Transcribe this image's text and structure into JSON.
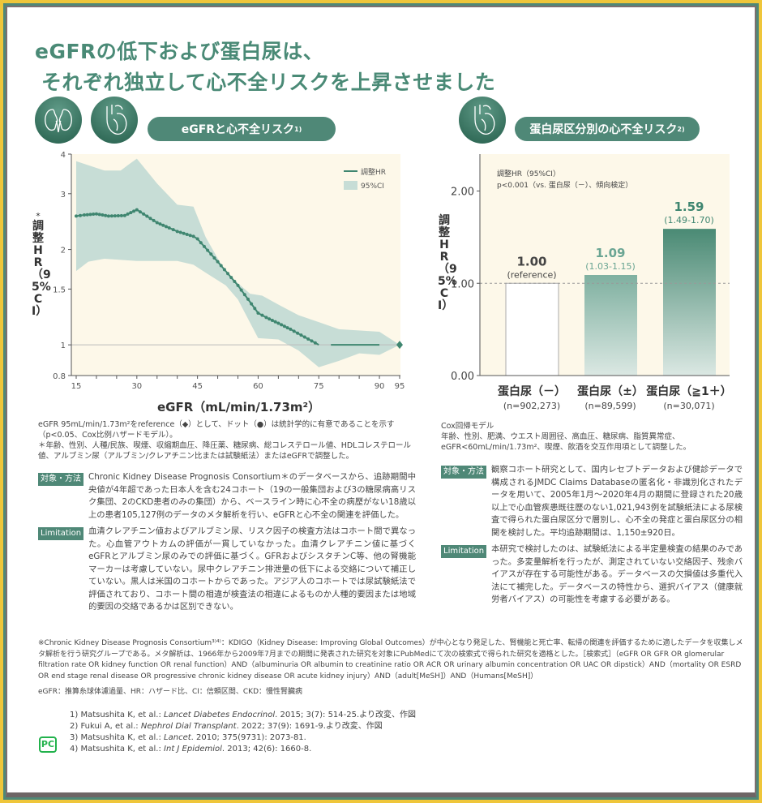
{
  "title": {
    "line1": "eGFRの低下および蛋白尿は、",
    "line2": "それぞれ独立して心不全リスクを上昇させました"
  },
  "left": {
    "section_label": "eGFRと心不全リスク",
    "section_sup": "1)",
    "icons": [
      "kidney-icon",
      "heart-icon"
    ],
    "chart_data": {
      "type": "line",
      "xlabel": "eGFR（mL/min/1.73m²）",
      "ylabel": "調整HR（95%CI）",
      "ylabel_mark": "*",
      "yscale": "log",
      "xlim": [
        15,
        95
      ],
      "ylim": [
        0.8,
        4
      ],
      "xticks": [
        15,
        30,
        45,
        60,
        75,
        90,
        95
      ],
      "yticks": [
        0.8,
        1,
        1.5,
        2,
        3,
        4
      ],
      "legend": {
        "position": "top-right",
        "hr": "調整HR",
        "ci": "95%CI"
      },
      "reference": {
        "x": 95,
        "y": 1
      },
      "hr": {
        "x": [
          15,
          17,
          20,
          23,
          27,
          30,
          35,
          38,
          40,
          44,
          45,
          50,
          55,
          60,
          62,
          65,
          68,
          75
        ],
        "y": [
          2.55,
          2.57,
          2.59,
          2.55,
          2.56,
          2.67,
          2.43,
          2.34,
          2.28,
          2.2,
          2.16,
          1.83,
          1.54,
          1.26,
          1.22,
          1.17,
          1.12,
          1.0
        ]
      },
      "hr_flat": {
        "x": [
          78,
          90
        ],
        "y": [
          1.0,
          1.0
        ]
      },
      "ci_upper": {
        "x": [
          15,
          22,
          26,
          28,
          30,
          35,
          40,
          44,
          47,
          52,
          58,
          61,
          65,
          70,
          75,
          80,
          90,
          95
        ],
        "y": [
          3.8,
          3.55,
          3.55,
          3.71,
          3.87,
          3.23,
          2.77,
          2.73,
          2.19,
          1.69,
          1.45,
          1.43,
          1.34,
          1.24,
          1.18,
          1.12,
          1.1,
          1.0
        ]
      },
      "ci_lower": {
        "x": [
          15,
          18,
          22,
          30,
          40,
          44,
          47,
          52,
          55,
          60,
          65,
          70,
          75,
          80,
          85,
          90,
          95
        ],
        "y": [
          1.71,
          1.83,
          1.87,
          1.84,
          1.84,
          1.79,
          1.69,
          1.54,
          1.39,
          1.05,
          1.04,
          0.96,
          0.85,
          0.89,
          0.94,
          0.93,
          1.0
        ]
      },
      "colors": {
        "hr": "#3f8670",
        "ci": "#c7ddd6",
        "bg": "#fdf8e9"
      }
    },
    "note1": "eGFR 95mL/min/1.73m²をreference（◆）として、ドット（●）は統計学的に有意であることを示す（p<0.05、Cox比例ハザードモデル）。",
    "note2": "＊年齢、性別、人種/民族、喫煙、収縮期血圧、降圧薬、糖尿病、総コレステロール値、HDLコレステロール値、アルブミン尿（アルブミン/クレアチニン比または試験紙法）またはeGFRで調整した。",
    "method_badge": "対象・方法",
    "method": "Chronic Kidney Disease Prognosis Consortium＊のデータベースから、追跡期間中央値が4年超であった日本人を含む24コホート（19の一般集団および3の糖尿病高リスク集団、2のCKD患者のみの集団）から、ベースライン時に心不全の病歴がない18歳以上の患者105,127例のデータのメタ解析を行い、eGFRと心不全の関連を評価した。",
    "limit_badge": "Limitation",
    "limit": "血清クレアチニン値およびアルブミン尿、リスク因子の検査方法はコホート間で異なった。心血管アウトカムの評価が一貫していなかった。血清クレアチニン値に基づくeGFRとアルブミン尿のみでの評価に基づく。GFRおよびシスタチンC等、他の腎機能マーカーは考慮していない。尿中クレアチニン排泄量の低下による交絡について補正していない。黒人は米国のコホートからであった。アジア人のコホートでは尿試験紙法で評価されており、コホート間の相違が検査法の相違によるものか人種的要因または地域的要因の交絡であるかは区別できない。"
  },
  "right": {
    "section_label": "蛋白尿区分別の心不全リスク",
    "section_sup": "2)",
    "icons": [
      "heart-icon"
    ],
    "chart_data": {
      "type": "bar",
      "ylabel": "調整HR（95%CI）",
      "annotation1": "調整HR（95%CI）",
      "annotation2": "p<0.001（vs. 蛋白尿（－）、傾向検定）",
      "ylim": [
        0,
        2.4
      ],
      "yticks": [
        "0.00",
        "1.00",
        "2.00"
      ],
      "reference_line": 1.0,
      "categories": [
        "蛋白尿（－）",
        "蛋白尿（±）",
        "蛋白尿（≧1＋）"
      ],
      "n": [
        "(n=902,273)",
        "(n=89,599)",
        "(n=30,071)"
      ],
      "values": [
        1.0,
        1.09,
        1.59
      ],
      "value_labels": [
        "1.00",
        "1.09",
        "1.59"
      ],
      "ci_labels": [
        "(reference)",
        "(1.03-1.15)",
        "(1.49-1.70)"
      ],
      "colors": {
        "ref": "#ffffff",
        "mid": "#7fb0a0",
        "high": "#4a8a74",
        "bg": "#fdf8e9"
      }
    },
    "note1": "Cox回帰モデル",
    "note2": "年齢、性別、肥満、ウエスト周囲径、高血圧、糖尿病、脂質異常症、eGFR<60mL/min/1.73m²、喫煙、飲酒を交互作用項として調整した。",
    "method_badge": "対象・方法",
    "method": "観察コホート研究として、国内レセプトデータおよび健診データで構成されるJMDC Claims Databaseの匿名化・非識別化されたデータを用いて、2005年1月～2020年4月の期間に登録された20歳以上で心血管疾患既往歴のない1,021,943例を試験紙法による尿検査で得られた蛋白尿区分で層別し、心不全の発症と蛋白尿区分の相関を検討した。平均追跡期間は、1,150±920日。",
    "limit_badge": "Limitation",
    "limit": "本研究で検討したのは、試験紙法による半定量検査の結果のみであった。多変量解析を行ったが、測定されていない交絡因子、残余バイアスが存在する可能性がある。データベースの欠損値は多重代入法にて補完した。データベースの特性から、選択バイアス（健康就労者バイアス）の可能性を考慮する必要がある。"
  },
  "footnote": "※Chronic Kidney Disease Prognosis Consortium³⁾⁴⁾：KDIGO（Kidney Disease: Improving Global Outcomes）が中心となり発足した、腎機能と死亡率、転帰の関連を評価するために適したデータを収集しメタ解析を行う研究グループである。メタ解析は、1966年から2009年7月までの期間に発表された研究を対象にPubMedにて次の検索式で得られた研究を適格とした。［検索式］（eGFR OR GFR OR glomerular filtration rate OR kidney function OR renal function）AND（albuminuria OR albumin to creatinine ratio OR ACR OR urinary albumin concentration OR UAC OR dipstick）AND（mortality OR ESRD OR end stage renal disease OR progressive chronic kidney disease OR acute kidney injury）AND（adult[MeSH]）AND（Humans[MeSH]）",
  "abbrev": "eGFR：推算糸球体濾過量、HR：ハザード比、CI：信頼区間、CKD：慢性腎臓病",
  "references": [
    {
      "pre": "1) Matsushita K, et al.: ",
      "journal": "Lancet Diabetes Endocrinol",
      "post": ". 2015; 3(7): 514-25.より改変、作図"
    },
    {
      "pre": "2) Fukui A, et al.: ",
      "journal": "Nephrol Dial Transplant",
      "post": ". 2022; 37(9): 1691-9.より改変、作図"
    },
    {
      "pre": "3) Matsushita K, et al.: ",
      "journal": "Lancet",
      "post": ". 2010; 375(9731): 2073-81."
    },
    {
      "pre": "4) Matsushita K, et al.: ",
      "journal": "Int J Epidemiol",
      "post": ". 2013; 42(6): 1660-8."
    }
  ],
  "logo": "PC"
}
